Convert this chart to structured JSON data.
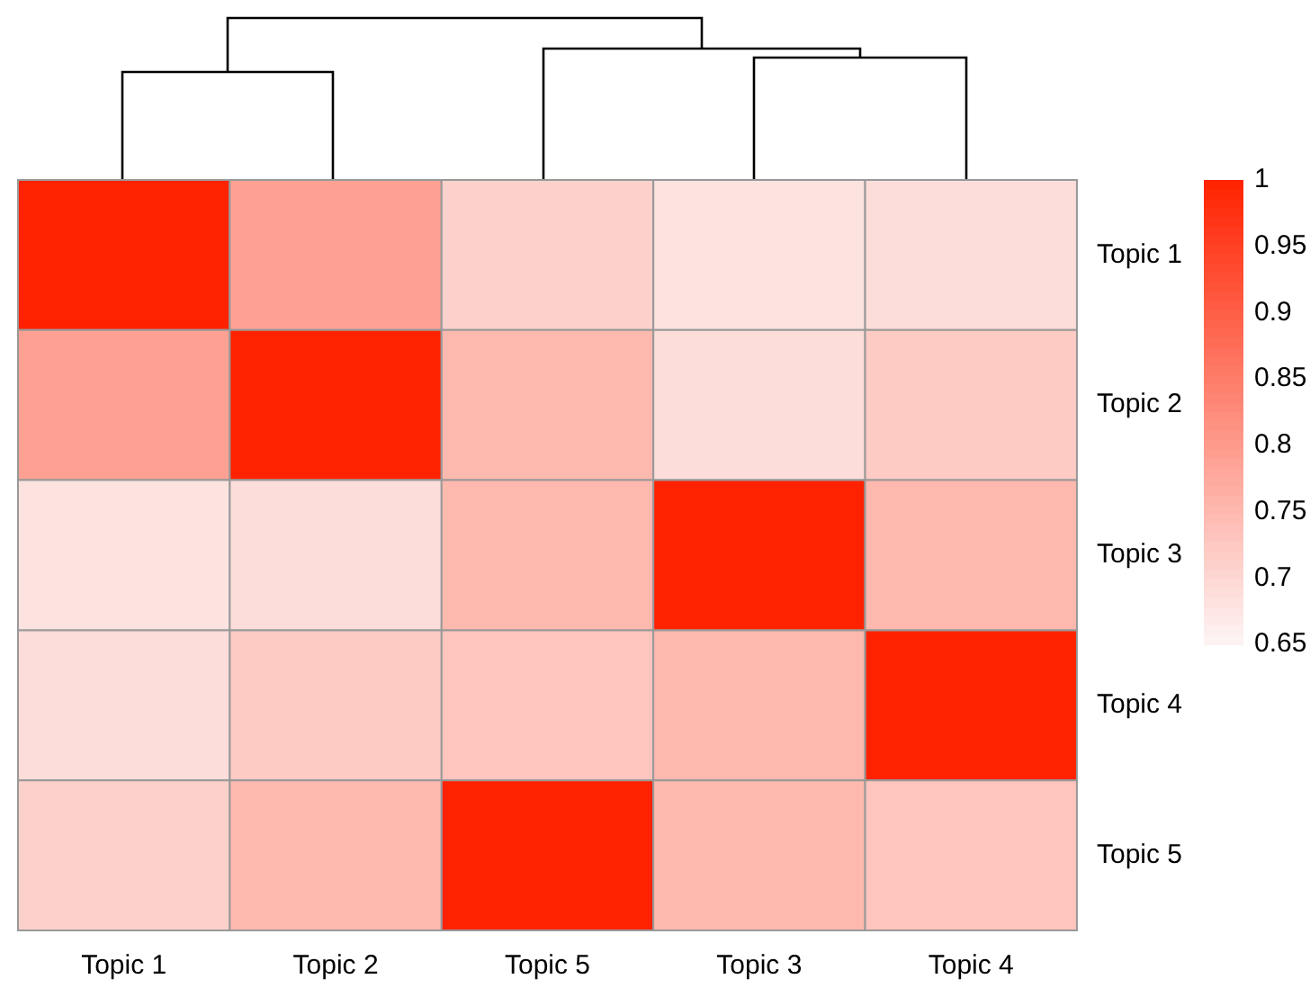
{
  "chart_data": {
    "type": "heatmap",
    "categories": [
      "Topic 1",
      "Topic 2",
      "Topic 5",
      "Topic 3",
      "Topic 4"
    ],
    "y_categories": [
      "Topic 1",
      "Topic 2",
      "Topic 3",
      "Topic 4",
      "Topic 5"
    ],
    "cells": [
      [
        1,
        0.79,
        0.71,
        0.68,
        0.69
      ],
      [
        0.79,
        1,
        0.75,
        0.69,
        0.72
      ],
      [
        0.68,
        0.69,
        0.75,
        1,
        0.75
      ],
      [
        0.69,
        0.72,
        0.73,
        0.75,
        1
      ],
      [
        0.71,
        0.75,
        1,
        0.75,
        0.73
      ]
    ],
    "clim": [
      0.65,
      1
    ],
    "cticks": [
      0.65,
      0.7,
      0.75,
      0.8,
      0.85,
      0.9,
      0.95,
      1
    ]
  }
}
